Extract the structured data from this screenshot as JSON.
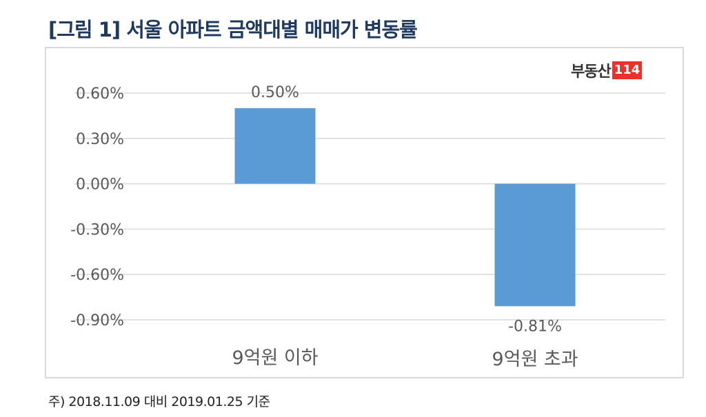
{
  "title": "[그림 1] 서울 아파트 금액대별 매매가 변동률",
  "footnote": "주) 2018.11.09 대비 2019.01.25 기준",
  "logo": {
    "text": "부동산",
    "number": "114",
    "color": "#e8322b"
  },
  "chart_data": {
    "type": "bar",
    "categories": [
      "9억원 이하",
      "9억원 초과"
    ],
    "values": [
      0.5,
      -0.81
    ],
    "data_labels": [
      "0.50%",
      "-0.81%"
    ],
    "yticks": [
      "0.60%",
      "0.30%",
      "0.00%",
      "-0.30%",
      "-0.60%",
      "-0.90%"
    ],
    "ytick_values": [
      0.6,
      0.3,
      0,
      -0.3,
      -0.6,
      -0.9
    ],
    "ylim": [
      -0.9,
      0.6
    ],
    "grid": true,
    "bar_color": "#5b9bd5"
  }
}
